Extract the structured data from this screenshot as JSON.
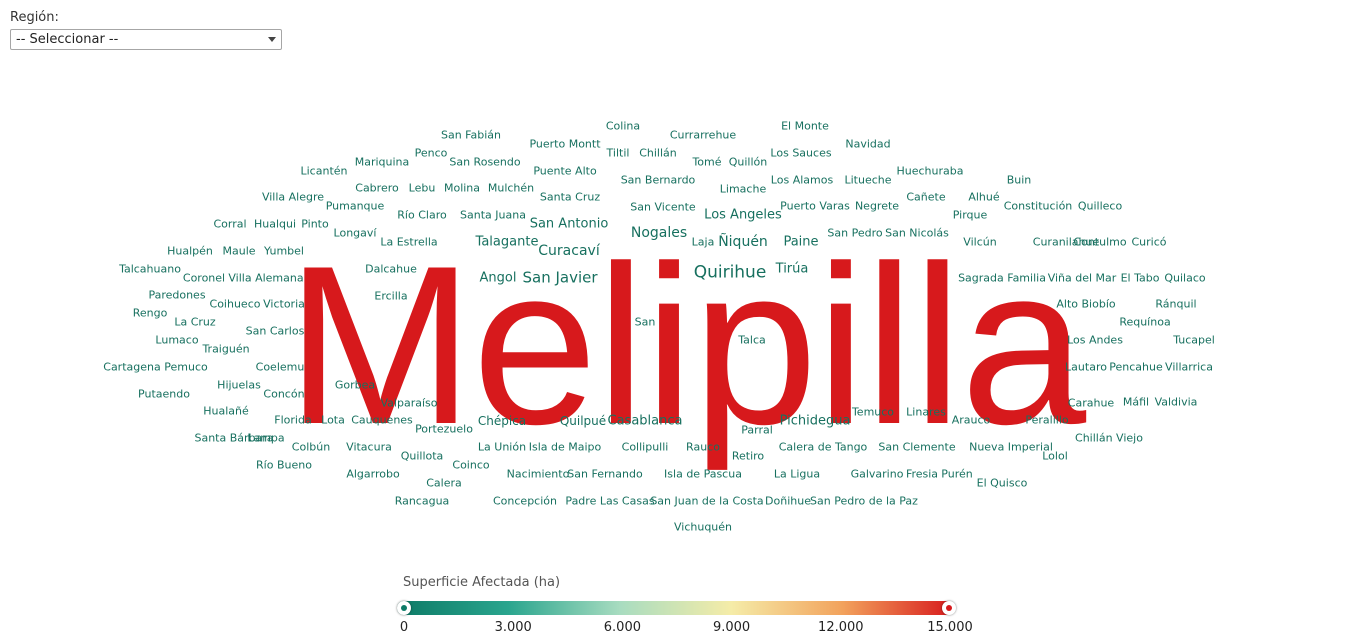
{
  "filter": {
    "label": "Región:",
    "selected": "-- Seleccionar --"
  },
  "colors": {
    "low": "#17705f",
    "high": "#d7191c",
    "gradient": [
      "#0d7a66",
      "#2aa58e",
      "#a8dcc0",
      "#f5eca8",
      "#f2a25c",
      "#d7191c"
    ]
  },
  "legend": {
    "title": "Superficie Afectada (ha)",
    "ticks": [
      "0",
      "3.000",
      "6.000",
      "9.000",
      "12.000",
      "15.000"
    ],
    "min": 0,
    "max": 15000
  },
  "words": [
    {
      "t": "Melipilla",
      "big": true
    },
    {
      "t": "San Fabián"
    },
    {
      "t": "Puerto Montt"
    },
    {
      "t": "Colina"
    },
    {
      "t": "Currarrehue"
    },
    {
      "t": "El Monte"
    },
    {
      "t": "Navidad"
    },
    {
      "t": "Penco"
    },
    {
      "t": "Tiltil"
    },
    {
      "t": "Chillán"
    },
    {
      "t": "Los Sauces"
    },
    {
      "t": "Licantén"
    },
    {
      "t": "Mariquina"
    },
    {
      "t": "San Rosendo"
    },
    {
      "t": "Puente Alto"
    },
    {
      "t": "Tomé"
    },
    {
      "t": "Quillón"
    },
    {
      "t": "Huechuraba"
    },
    {
      "t": "San Bernardo"
    },
    {
      "t": "Los Alamos"
    },
    {
      "t": "Litueche"
    },
    {
      "t": "Buin"
    },
    {
      "t": "Cabrero"
    },
    {
      "t": "Lebu"
    },
    {
      "t": "Molina"
    },
    {
      "t": "Mulchén"
    },
    {
      "t": "Limache"
    },
    {
      "t": "Villa Alegre"
    },
    {
      "t": "Santa Cruz"
    },
    {
      "t": "Cañete"
    },
    {
      "t": "Alhué"
    },
    {
      "t": "Pumanque"
    },
    {
      "t": "San Vicente"
    },
    {
      "t": "Puerto Varas"
    },
    {
      "t": "Negrete"
    },
    {
      "t": "Constitución"
    },
    {
      "t": "Quilleco"
    },
    {
      "t": "Río Claro"
    },
    {
      "t": "Santa Juana"
    },
    {
      "t": "Los Angeles"
    },
    {
      "t": "Pirque"
    },
    {
      "t": "Corral"
    },
    {
      "t": "Hualqui"
    },
    {
      "t": "Pinto"
    },
    {
      "t": "San Antonio"
    },
    {
      "t": "Longaví"
    },
    {
      "t": "Nogales"
    },
    {
      "t": "San Pedro"
    },
    {
      "t": "San Nicolás"
    },
    {
      "t": "La Estrella"
    },
    {
      "t": "Talagante"
    },
    {
      "t": "Laja"
    },
    {
      "t": "Ñiquén"
    },
    {
      "t": "Paine"
    },
    {
      "t": "Vilcún"
    },
    {
      "t": "Curanilahue"
    },
    {
      "t": "Contulmo"
    },
    {
      "t": "Curicó"
    },
    {
      "t": "Hualpén"
    },
    {
      "t": "Maule"
    },
    {
      "t": "Yumbel"
    },
    {
      "t": "Curacaví"
    },
    {
      "t": "Talcahuano"
    },
    {
      "t": "Dalcahue"
    },
    {
      "t": "Tirúa"
    },
    {
      "t": "Angol"
    },
    {
      "t": "San Javier"
    },
    {
      "t": "Quirihue"
    },
    {
      "t": "Coronel"
    },
    {
      "t": "Villa Alemana"
    },
    {
      "t": "Sagrada Familia"
    },
    {
      "t": "Viña del Mar"
    },
    {
      "t": "El Tabo"
    },
    {
      "t": "Quilaco"
    },
    {
      "t": "Paredones"
    },
    {
      "t": "Ercilla"
    },
    {
      "t": "Coihueco"
    },
    {
      "t": "Victoria"
    },
    {
      "t": "Alto Biobío"
    },
    {
      "t": "Ránquil"
    },
    {
      "t": "Rengo"
    },
    {
      "t": "La Cruz"
    },
    {
      "t": "San Carlos"
    },
    {
      "t": "Requínoa"
    },
    {
      "t": "Lumaco"
    },
    {
      "t": "Talca"
    },
    {
      "t": "Los Andes"
    },
    {
      "t": "Tucapel"
    },
    {
      "t": "Traiguén"
    },
    {
      "t": "Cartagena"
    },
    {
      "t": "Pemuco"
    },
    {
      "t": "Coelemu"
    },
    {
      "t": "Lautaro"
    },
    {
      "t": "Pencahue"
    },
    {
      "t": "Villarrica"
    },
    {
      "t": "Hijuelas"
    },
    {
      "t": "Gorbea"
    },
    {
      "t": "Putaendo"
    },
    {
      "t": "Concón"
    },
    {
      "t": "Valparaíso"
    },
    {
      "t": "Carahue"
    },
    {
      "t": "Máfil"
    },
    {
      "t": "Valdivia"
    },
    {
      "t": "Hualañé"
    },
    {
      "t": "Temuco"
    },
    {
      "t": "Linares"
    },
    {
      "t": "Florida"
    },
    {
      "t": "Lota"
    },
    {
      "t": "Cauquenes"
    },
    {
      "t": "Chépica"
    },
    {
      "t": "Quilpué"
    },
    {
      "t": "Casablanca"
    },
    {
      "t": "Pichidegua"
    },
    {
      "t": "Arauco"
    },
    {
      "t": "Peralillo"
    },
    {
      "t": "Portezuelo"
    },
    {
      "t": "Parral"
    },
    {
      "t": "Santa Bárbara"
    },
    {
      "t": "Lampa"
    },
    {
      "t": "Chillán Viejo"
    },
    {
      "t": "Colbún"
    },
    {
      "t": "Vitacura"
    },
    {
      "t": "La Unión"
    },
    {
      "t": "Isla de Maipo"
    },
    {
      "t": "Collipulli"
    },
    {
      "t": "Rauco"
    },
    {
      "t": "Calera de Tango"
    },
    {
      "t": "San Clemente"
    },
    {
      "t": "Nueva Imperial"
    },
    {
      "t": "Quillota"
    },
    {
      "t": "Retiro"
    },
    {
      "t": "Lolol"
    },
    {
      "t": "Río Bueno"
    },
    {
      "t": "Coinco"
    },
    {
      "t": "Algarrobo"
    },
    {
      "t": "Nacimiento"
    },
    {
      "t": "San Fernando"
    },
    {
      "t": "Isla de Pascua"
    },
    {
      "t": "La Ligua"
    },
    {
      "t": "Galvarino"
    },
    {
      "t": "Fresia"
    },
    {
      "t": "Purén"
    },
    {
      "t": "Calera"
    },
    {
      "t": "El Quisco"
    },
    {
      "t": "Rancagua"
    },
    {
      "t": "Concepción"
    },
    {
      "t": "Padre Las Casas"
    },
    {
      "t": "San Juan de la Costa"
    },
    {
      "t": "Doñihue"
    },
    {
      "t": "San Pedro de la Paz"
    },
    {
      "t": "Vichuquén"
    },
    {
      "t": "San"
    }
  ]
}
